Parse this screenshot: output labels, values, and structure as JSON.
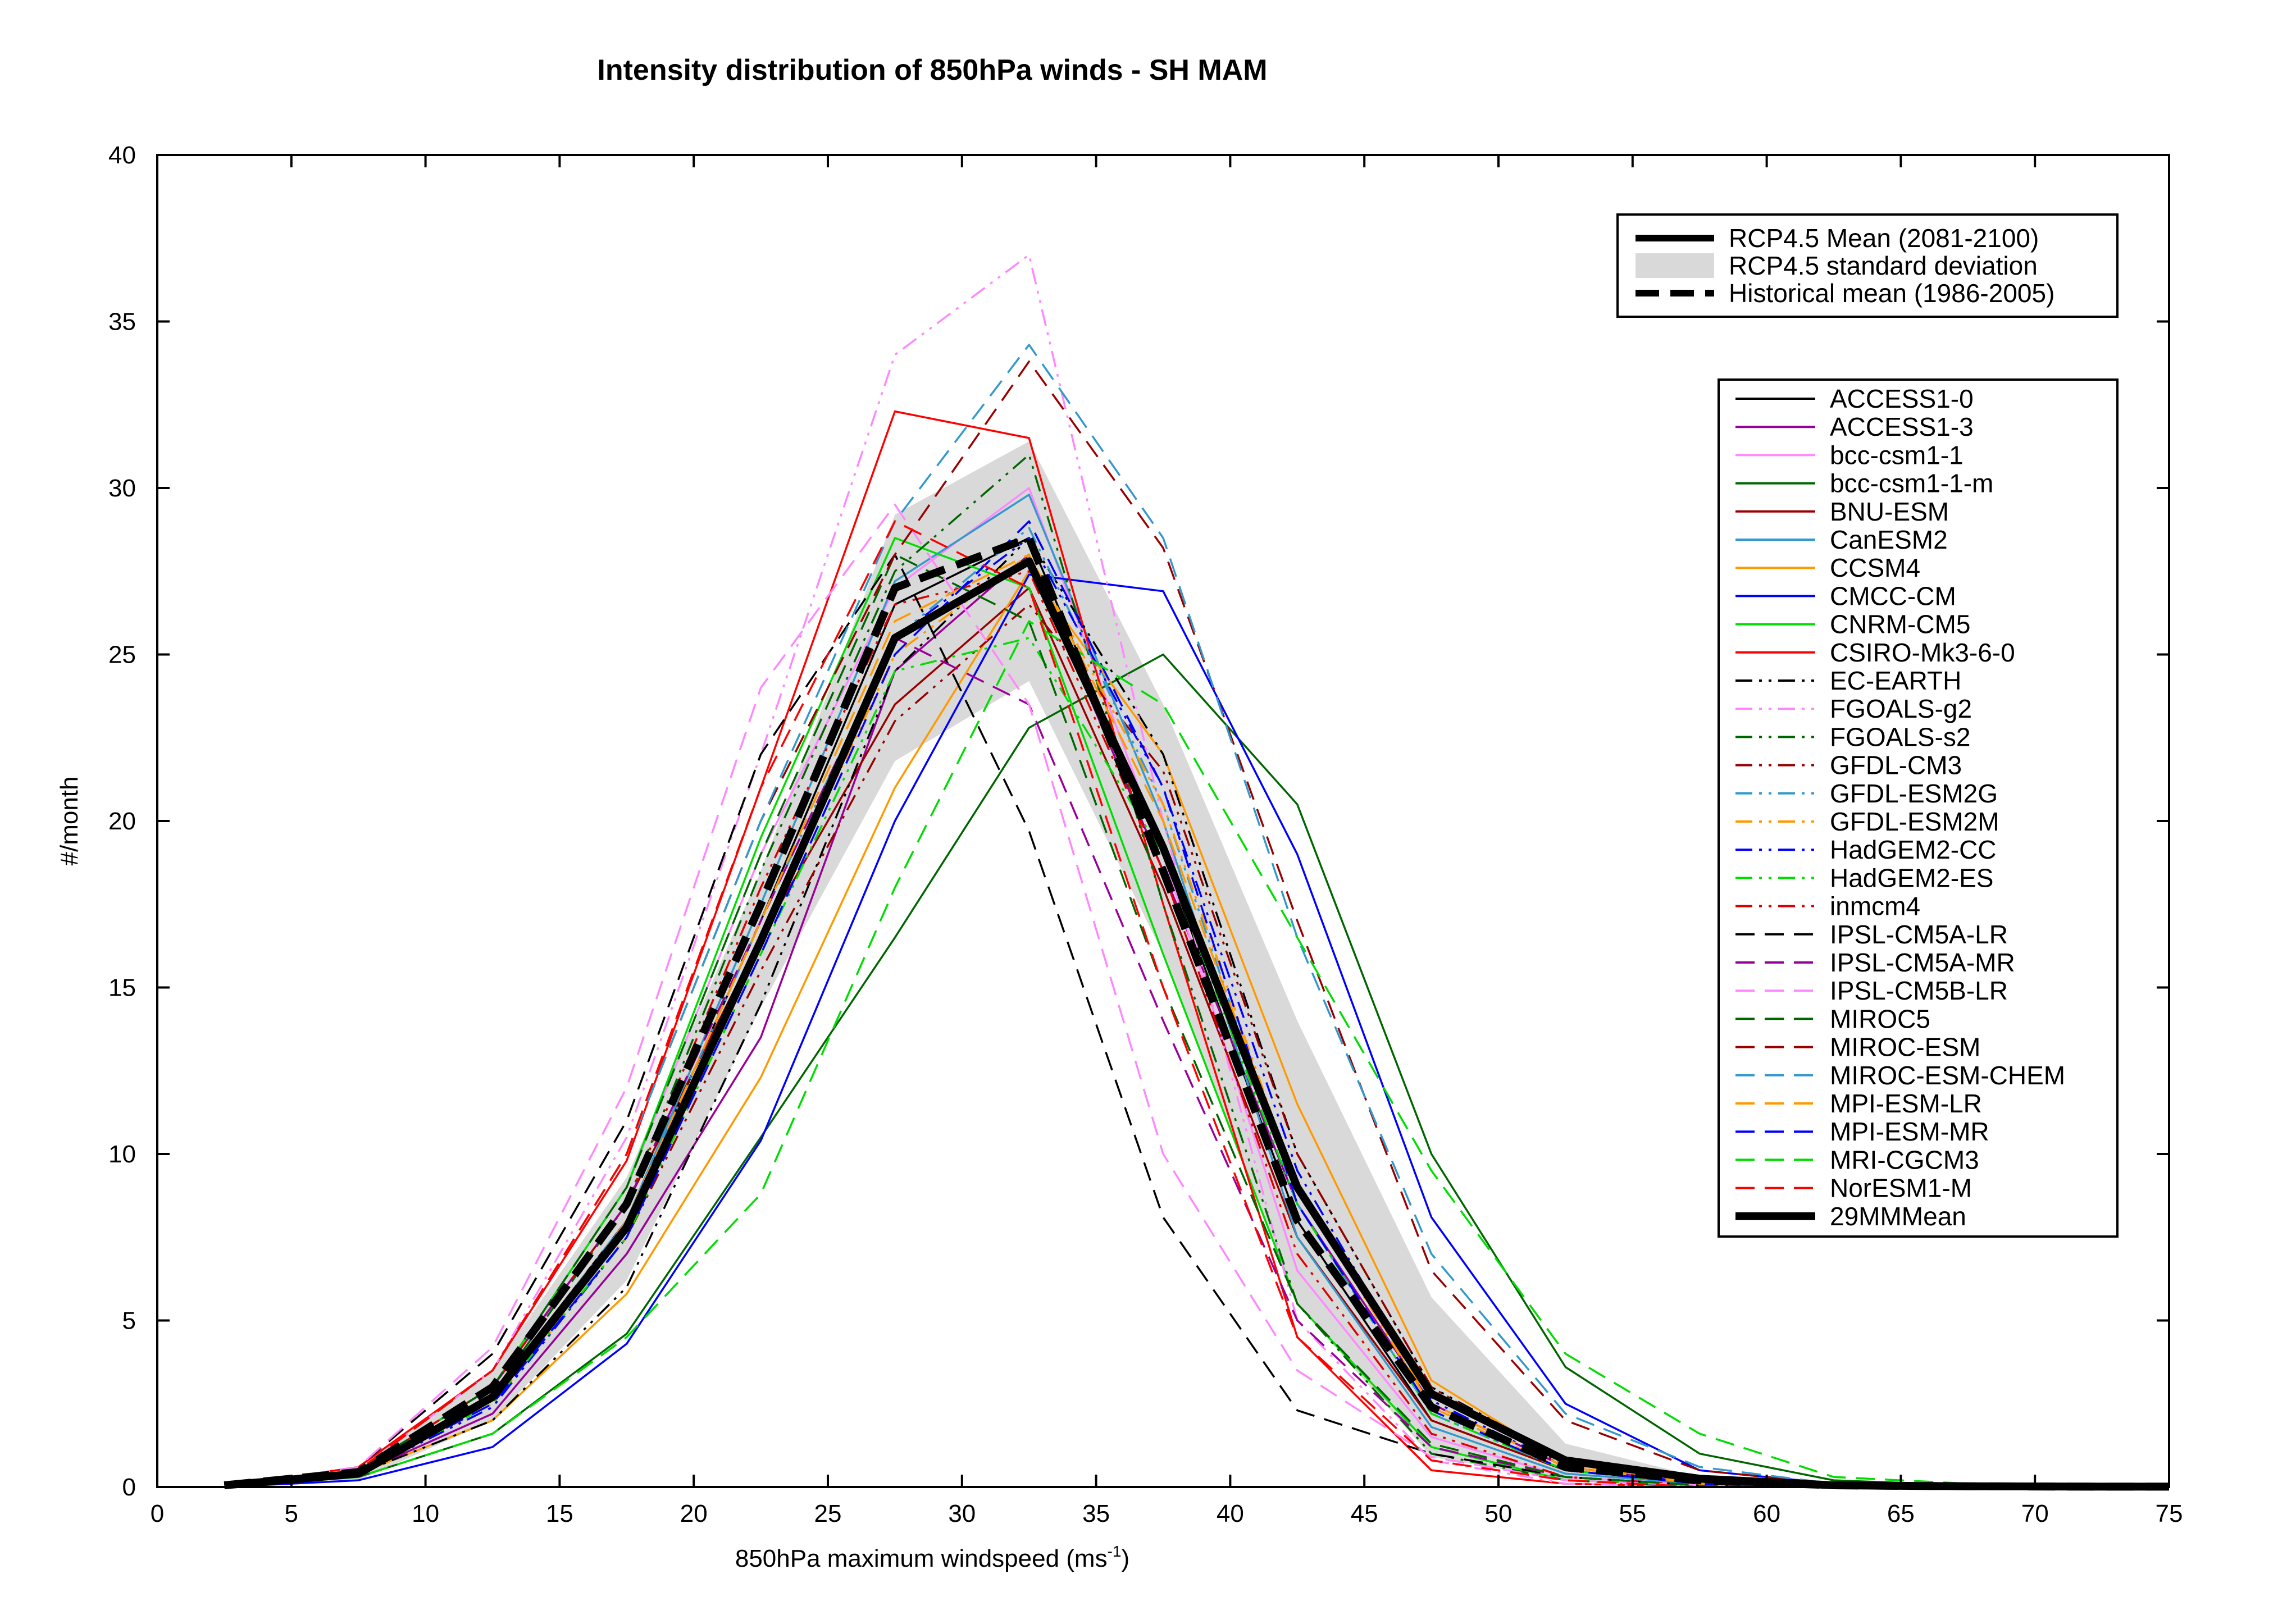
{
  "chart_data": {
    "type": "line",
    "title": "Intensity distribution of 850hPa winds - SH MAM",
    "xlabel": "850hPa maximum windspeed (ms",
    "xlabel_sup": "-1",
    "xlabel_end": ")",
    "ylabel": "#/month",
    "xlim": [
      0,
      75
    ],
    "ylim": [
      0,
      40
    ],
    "xticks": [
      0,
      5,
      10,
      15,
      20,
      25,
      30,
      35,
      40,
      45,
      50,
      55,
      60,
      65,
      70,
      75
    ],
    "yticks": [
      0,
      5,
      10,
      15,
      20,
      25,
      30,
      35,
      40
    ],
    "grid": false,
    "x": [
      2.5,
      7.5,
      12.5,
      17.5,
      22.5,
      27.5,
      32.5,
      37.5,
      42.5,
      47.5,
      52.5,
      57.5,
      62.5,
      67.5,
      72.5,
      75
    ],
    "std_band": {
      "name": "RCP4.5 standard deviation",
      "color": "#d9d9d9",
      "upper": [
        0.05,
        0.6,
        3.5,
        9.3,
        18.5,
        29.2,
        31.4,
        23.5,
        14.0,
        5.7,
        1.3,
        0.3,
        0.05,
        0.02,
        0.01,
        0.01
      ],
      "lower": [
        0.0,
        0.2,
        2.0,
        6.2,
        14.4,
        21.8,
        24.2,
        16.0,
        5.5,
        0.9,
        0.2,
        0.05,
        0.0,
        0.0,
        0.0,
        0.0
      ]
    },
    "legend_main": {
      "placement": "top-right",
      "entries": [
        {
          "label": "RCP4.5 Mean (2081-2100)",
          "style": "thick-solid"
        },
        {
          "label": "RCP4.5 standard deviation",
          "style": "band"
        },
        {
          "label": "Historical mean (1986-2005)",
          "style": "thick-dashed"
        }
      ]
    },
    "series": [
      {
        "name": "ACCESS1-0",
        "color": "#000000",
        "dash": "solid",
        "values": [
          0,
          0.5,
          2.8,
          8.0,
          17.0,
          26.5,
          28.5,
          19.0,
          8.0,
          2.0,
          0.5,
          0.1,
          0,
          0,
          0,
          0
        ]
      },
      {
        "name": "ACCESS1-3",
        "color": "#990099",
        "dash": "solid",
        "values": [
          0,
          0.4,
          2.2,
          7.0,
          13.5,
          24.5,
          28.0,
          18.5,
          8.5,
          2.5,
          0.6,
          0.1,
          0,
          0,
          0,
          0
        ]
      },
      {
        "name": "bcc-csm1-1",
        "color": "#ff88ff",
        "dash": "solid",
        "values": [
          0,
          0.5,
          3.0,
          9.0,
          19.0,
          27.0,
          30.0,
          19.0,
          6.5,
          1.5,
          0.3,
          0.05,
          0,
          0,
          0,
          0
        ]
      },
      {
        "name": "bcc-csm1-1-m",
        "color": "#006600",
        "dash": "solid",
        "values": [
          0,
          0.3,
          1.6,
          4.6,
          10.5,
          16.5,
          22.8,
          25.0,
          20.5,
          10.0,
          3.6,
          1.0,
          0.2,
          0.05,
          0,
          0
        ]
      },
      {
        "name": "BNU-ESM",
        "color": "#990000",
        "dash": "solid",
        "values": [
          0,
          0.5,
          3.0,
          8.5,
          16.5,
          23.5,
          27.0,
          18.0,
          7.5,
          2.0,
          0.5,
          0.1,
          0,
          0,
          0,
          0
        ]
      },
      {
        "name": "CanESM2",
        "color": "#3399cc",
        "dash": "solid",
        "values": [
          0,
          0.5,
          2.6,
          8.0,
          17.5,
          27.2,
          29.8,
          20.0,
          7.5,
          1.8,
          0.4,
          0.1,
          0,
          0,
          0,
          0
        ]
      },
      {
        "name": "CCSM4",
        "color": "#ff9900",
        "dash": "solid",
        "values": [
          0,
          0.4,
          2.0,
          5.8,
          12.3,
          21.0,
          27.5,
          22.0,
          11.5,
          3.2,
          0.7,
          0.1,
          0,
          0,
          0,
          0
        ]
      },
      {
        "name": "CMCC-CM",
        "color": "#0000ff",
        "dash": "solid",
        "values": [
          0,
          0.2,
          1.2,
          4.3,
          10.4,
          20.0,
          27.4,
          26.9,
          19.0,
          8.1,
          2.5,
          0.5,
          0.1,
          0,
          0,
          0
        ]
      },
      {
        "name": "CNRM-CM5",
        "color": "#00dd00",
        "dash": "solid",
        "values": [
          0,
          0.5,
          3.0,
          9.0,
          19.5,
          28.5,
          27.0,
          16.0,
          5.5,
          1.2,
          0.2,
          0.05,
          0,
          0,
          0,
          0
        ]
      },
      {
        "name": "CSIRO-Mk3-6-0",
        "color": "#ff0000",
        "dash": "solid",
        "values": [
          0,
          0.6,
          3.5,
          9.8,
          21.0,
          32.3,
          31.5,
          17.5,
          4.5,
          0.5,
          0.1,
          0,
          0,
          0,
          0,
          0
        ]
      },
      {
        "name": "EC-EARTH",
        "color": "#000000",
        "dash": "dashdotdot",
        "values": [
          0,
          0.4,
          2.0,
          6.0,
          14.5,
          24.5,
          28.5,
          22.0,
          10.0,
          3.0,
          0.8,
          0.2,
          0,
          0,
          0,
          0
        ]
      },
      {
        "name": "FGOALS-g2",
        "color": "#ff88ff",
        "dash": "dashdotdot",
        "values": [
          0,
          0.5,
          3.5,
          10.5,
          22.0,
          34.0,
          37.0,
          20.0,
          5.0,
          0.8,
          0.1,
          0,
          0,
          0,
          0,
          0
        ]
      },
      {
        "name": "FGOALS-s2",
        "color": "#006600",
        "dash": "dashdotdot",
        "values": [
          0,
          0.5,
          2.8,
          8.5,
          18.5,
          27.5,
          31.0,
          17.5,
          5.5,
          1.0,
          0.2,
          0,
          0,
          0,
          0,
          0
        ]
      },
      {
        "name": "GFDL-CM3",
        "color": "#990000",
        "dash": "dashdotdot",
        "values": [
          0,
          0.4,
          2.4,
          7.5,
          15.5,
          23.0,
          26.5,
          21.5,
          10.0,
          3.0,
          0.6,
          0.1,
          0,
          0,
          0,
          0
        ]
      },
      {
        "name": "GFDL-ESM2G",
        "color": "#3399cc",
        "dash": "dashdotdot",
        "values": [
          0,
          0.5,
          2.8,
          8.0,
          17.0,
          25.5,
          28.8,
          20.5,
          8.5,
          2.2,
          0.5,
          0.1,
          0,
          0,
          0,
          0
        ]
      },
      {
        "name": "GFDL-ESM2M",
        "color": "#ff9900",
        "dash": "dashdotdot",
        "values": [
          0,
          0.5,
          2.5,
          7.5,
          16.5,
          25.0,
          28.0,
          20.5,
          9.0,
          2.4,
          0.5,
          0.1,
          0,
          0,
          0,
          0
        ]
      },
      {
        "name": "HadGEM2-CC",
        "color": "#0000ff",
        "dash": "dashdotdot",
        "values": [
          0,
          0.4,
          2.4,
          7.5,
          16.5,
          25.5,
          28.5,
          21.0,
          9.5,
          2.6,
          0.6,
          0.1,
          0,
          0,
          0,
          0
        ]
      },
      {
        "name": "HadGEM2-ES",
        "color": "#00dd00",
        "dash": "dashdotdot",
        "values": [
          0,
          0.4,
          2.5,
          7.5,
          16.0,
          24.5,
          25.5,
          19.0,
          8.5,
          2.2,
          0.5,
          0.1,
          0,
          0,
          0,
          0
        ]
      },
      {
        "name": "inmcm4",
        "color": "#dd0000",
        "dash": "dashdotdot",
        "values": [
          0,
          0.5,
          3.0,
          8.5,
          18.0,
          26.5,
          27.5,
          18.5,
          7.0,
          1.6,
          0.3,
          0.05,
          0,
          0,
          0,
          0
        ]
      },
      {
        "name": "IPSL-CM5A-LR",
        "color": "#000000",
        "dash": "dashed",
        "values": [
          0,
          0.6,
          4.0,
          11.0,
          22.0,
          28.0,
          19.7,
          8.1,
          2.3,
          1.0,
          0.3,
          0.05,
          0,
          0,
          0,
          0
        ]
      },
      {
        "name": "IPSL-CM5A-MR",
        "color": "#990099",
        "dash": "dashed",
        "values": [
          0,
          0.5,
          3.0,
          8.5,
          17.0,
          25.5,
          23.5,
          14.0,
          5.0,
          1.2,
          0.3,
          0.05,
          0,
          0,
          0,
          0
        ]
      },
      {
        "name": "IPSL-CM5B-LR",
        "color": "#ff88ff",
        "dash": "dashed",
        "values": [
          0,
          0.6,
          4.2,
          12.0,
          24.0,
          29.5,
          23.5,
          10.0,
          3.5,
          0.9,
          0.2,
          0.05,
          0,
          0,
          0,
          0
        ]
      },
      {
        "name": "MIROC5",
        "color": "#006600",
        "dash": "dashed",
        "values": [
          0,
          0.5,
          3.0,
          9.0,
          19.0,
          28.0,
          26.0,
          15.0,
          5.5,
          1.3,
          0.3,
          0.05,
          0,
          0,
          0,
          0
        ]
      },
      {
        "name": "MIROC-ESM",
        "color": "#990000",
        "dash": "dashed",
        "values": [
          0,
          0.5,
          3.5,
          10.0,
          20.0,
          28.0,
          33.8,
          28.2,
          17.0,
          6.5,
          2.0,
          0.5,
          0.1,
          0,
          0,
          0
        ]
      },
      {
        "name": "MIROC-ESM-CHEM",
        "color": "#3399cc",
        "dash": "dashed",
        "values": [
          0,
          0.5,
          3.5,
          10.0,
          20.0,
          29.0,
          34.3,
          28.5,
          16.5,
          7.0,
          2.2,
          0.6,
          0.1,
          0,
          0,
          0
        ]
      },
      {
        "name": "MPI-ESM-LR",
        "color": "#ff9900",
        "dash": "dashed",
        "values": [
          0,
          0.4,
          2.5,
          8.0,
          17.0,
          26.0,
          28.0,
          20.0,
          9.0,
          2.5,
          0.6,
          0.1,
          0,
          0,
          0,
          0
        ]
      },
      {
        "name": "MPI-ESM-MR",
        "color": "#0000ff",
        "dash": "dashed",
        "values": [
          0,
          0.4,
          2.5,
          7.5,
          16.0,
          25.0,
          29.0,
          21.0,
          8.5,
          2.3,
          0.5,
          0.1,
          0,
          0,
          0,
          0
        ]
      },
      {
        "name": "MRI-CGCM3",
        "color": "#00dd00",
        "dash": "dashed",
        "values": [
          0,
          0.3,
          1.6,
          4.5,
          8.8,
          18.0,
          26.0,
          23.5,
          16.5,
          9.5,
          4.0,
          1.6,
          0.3,
          0.1,
          0,
          0
        ]
      },
      {
        "name": "NorESM1-M",
        "color": "#ff0000",
        "dash": "dashed",
        "values": [
          0,
          0.5,
          3.5,
          10.0,
          21.0,
          29.0,
          27.0,
          15.0,
          4.5,
          0.8,
          0.2,
          0,
          0,
          0,
          0,
          0
        ]
      },
      {
        "name": "29MMMean",
        "color": "#000000",
        "dash": "solid",
        "width": 9,
        "values": [
          0.05,
          0.4,
          2.7,
          7.8,
          16.4,
          25.5,
          27.8,
          19.2,
          9.0,
          2.8,
          0.8,
          0.25,
          0.05,
          0.02,
          0.01,
          0.01
        ]
      }
    ],
    "historical_mean": {
      "name": "Historical mean (1986-2005)",
      "color": "#000000",
      "dash": "dashed",
      "values": [
        0.05,
        0.45,
        3.0,
        8.5,
        17.5,
        27.0,
        28.5,
        18.5,
        8.0,
        2.4,
        0.6,
        0.2,
        0.05,
        0.02,
        0.01,
        0.01
      ]
    }
  }
}
